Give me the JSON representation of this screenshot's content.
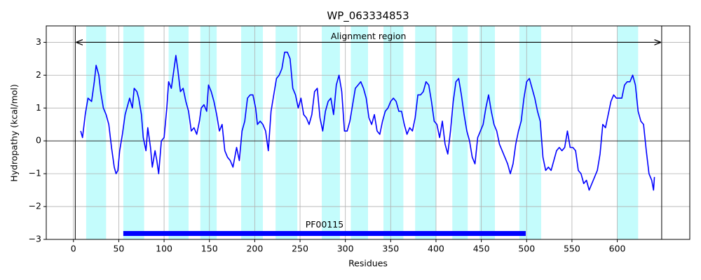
{
  "chart_data": {
    "type": "line",
    "title": "WP_063334853",
    "x_label": "Residues",
    "y_label": "Hydropathy (kcal/mol)",
    "xlim": [
      -30,
      680
    ],
    "ylim": [
      -3,
      3.5
    ],
    "xticks": [
      0,
      50,
      100,
      150,
      200,
      250,
      300,
      350,
      400,
      450,
      500,
      550,
      600
    ],
    "yticks": [
      {
        "value": -3,
        "label": "−3"
      },
      {
        "value": -2,
        "label": "−2"
      },
      {
        "value": -1,
        "label": "−1"
      },
      0,
      1,
      2,
      3
    ],
    "grid": true,
    "color": "#0000ff",
    "highlight_color": "#c4fcfc",
    "highlight_regions": [
      [
        14,
        36
      ],
      [
        55,
        78
      ],
      [
        105,
        127
      ],
      [
        140,
        158
      ],
      [
        185,
        209
      ],
      [
        223,
        247
      ],
      [
        274,
        294
      ],
      [
        306,
        325
      ],
      [
        342,
        364
      ],
      [
        377,
        400
      ],
      [
        418,
        435
      ],
      [
        448,
        465
      ],
      [
        492,
        516
      ],
      [
        600,
        623
      ]
    ],
    "alignment_region": {
      "label": "Alignment region",
      "start": 2,
      "end": 649,
      "y": 3
    },
    "domain": {
      "label": "PF00115",
      "start": 55,
      "end": 499,
      "y": -2.82,
      "color": "#0000ff"
    },
    "x": [
      8,
      10,
      13,
      16,
      20,
      23,
      25,
      28,
      30,
      33,
      36,
      39,
      42,
      45,
      47,
      49,
      51,
      54,
      57,
      60,
      62,
      65,
      67,
      70,
      72,
      75,
      77,
      80,
      82,
      85,
      87,
      90,
      92,
      94,
      97,
      100,
      103,
      105,
      108,
      110,
      113,
      115,
      118,
      121,
      124,
      127,
      130,
      133,
      136,
      139,
      141,
      144,
      147,
      149,
      152,
      155,
      158,
      161,
      164,
      167,
      170,
      173,
      176,
      178,
      180,
      183,
      186,
      189,
      192,
      195,
      198,
      201,
      203,
      206,
      209,
      212,
      215,
      218,
      221,
      224,
      227,
      230,
      233,
      236,
      239,
      242,
      245,
      248,
      251,
      254,
      257,
      260,
      263,
      266,
      269,
      272,
      275,
      278,
      281,
      284,
      287,
      290,
      293,
      296,
      299,
      302,
      305,
      308,
      311,
      314,
      317,
      320,
      323,
      326,
      329,
      332,
      335,
      338,
      341,
      344,
      347,
      350,
      353,
      356,
      359,
      362,
      365,
      368,
      371,
      374,
      377,
      380,
      383,
      386,
      389,
      392,
      395,
      398,
      401,
      404,
      407,
      410,
      413,
      416,
      419,
      422,
      425,
      428,
      431,
      434,
      437,
      440,
      443,
      446,
      449,
      452,
      455,
      458,
      461,
      464,
      467,
      470,
      473,
      476,
      479,
      482,
      485,
      488,
      491,
      494,
      497,
      500,
      503,
      506,
      509,
      512,
      515,
      518,
      521,
      524,
      527,
      530,
      533,
      536,
      539,
      542,
      545,
      548,
      551,
      554,
      557,
      560,
      563,
      566,
      569,
      572,
      575,
      578,
      581,
      584,
      587,
      590,
      593,
      596,
      599,
      602,
      605,
      608,
      611,
      614,
      617,
      620,
      623,
      626,
      629,
      632,
      635,
      638,
      640,
      641
    ],
    "values": [
      0.3,
      0.1,
      0.8,
      1.3,
      1.2,
      1.8,
      2.3,
      2.0,
      1.5,
      1.0,
      0.8,
      0.5,
      -0.2,
      -0.8,
      -1.0,
      -0.9,
      -0.3,
      0.2,
      0.8,
      1.1,
      1.3,
      1.0,
      1.6,
      1.5,
      1.3,
      0.8,
      0.1,
      -0.3,
      0.4,
      -0.2,
      -0.8,
      -0.3,
      -0.6,
      -1.0,
      0,
      0.1,
      1.0,
      1.8,
      1.6,
      2.0,
      2.6,
      2.2,
      1.5,
      1.6,
      1.2,
      0.9,
      0.3,
      0.4,
      0.2,
      0.6,
      1.0,
      1.1,
      0.9,
      1.7,
      1.5,
      1.2,
      0.8,
      0.3,
      0.5,
      -0.3,
      -0.5,
      -0.6,
      -0.8,
      -0.5,
      -0.2,
      -0.6,
      0.3,
      0.6,
      1.3,
      1.4,
      1.4,
      1.0,
      0.5,
      0.6,
      0.5,
      0.3,
      -0.3,
      0.9,
      1.4,
      1.9,
      2.0,
      2.2,
      2.7,
      2.7,
      2.5,
      1.6,
      1.4,
      1.0,
      1.3,
      0.8,
      0.7,
      0.5,
      0.8,
      1.5,
      1.6,
      0.7,
      0.3,
      0.9,
      1.2,
      1.3,
      0.8,
      1.7,
      2.0,
      1.5,
      0.3,
      0.3,
      0.6,
      1.1,
      1.6,
      1.7,
      1.8,
      1.6,
      1.3,
      0.7,
      0.5,
      0.8,
      0.3,
      0.2,
      0.6,
      0.9,
      1.0,
      1.2,
      1.3,
      1.2,
      0.9,
      0.9,
      0.5,
      0.2,
      0.4,
      0.3,
      0.7,
      1.4,
      1.4,
      1.5,
      1.8,
      1.7,
      1.2,
      0.6,
      0.5,
      0.1,
      0.6,
      -0.1,
      -0.4,
      0.3,
      1.2,
      1.8,
      1.9,
      1.4,
      0.8,
      0.3,
      0,
      -0.5,
      -0.7,
      0.1,
      0.3,
      0.5,
      1.0,
      1.4,
      0.9,
      0.5,
      0.3,
      -0.1,
      -0.3,
      -0.5,
      -0.7,
      -1.0,
      -0.7,
      -0.1,
      0.3,
      0.6,
      1.3,
      1.8,
      1.9,
      1.6,
      1.3,
      0.9,
      0.6,
      -0.5,
      -0.9,
      -0.8,
      -0.9,
      -0.6,
      -0.3,
      -0.2,
      -0.3,
      -0.2,
      0.3,
      -0.2,
      -0.2,
      -0.3,
      -0.9,
      -1.0,
      -1.3,
      -1.2,
      -1.5,
      -1.3,
      -1.1,
      -0.9,
      -0.4,
      0.5,
      0.4,
      0.8,
      1.2,
      1.4,
      1.3,
      1.3,
      1.3,
      1.7,
      1.8,
      1.8,
      2.0,
      1.7,
      0.9,
      0.6,
      0.5,
      -0.3,
      -1.0,
      -1.2,
      -1.5,
      -1.1
    ]
  }
}
